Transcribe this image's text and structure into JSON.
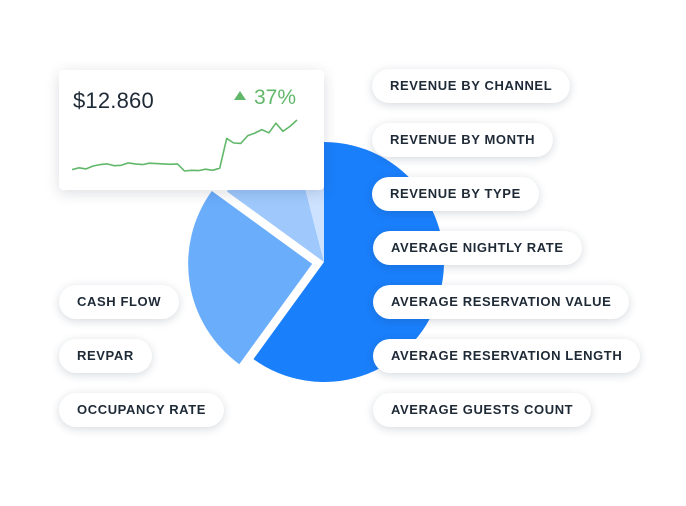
{
  "chart_data": {
    "type": "pie",
    "values": [
      60,
      25,
      11,
      4
    ],
    "colors": [
      "#1a7ffb",
      "#6aadfb",
      "#9fc9fd",
      "#cde2fe"
    ],
    "exploded": [
      false,
      true,
      false,
      false
    ]
  },
  "sparkline": {
    "amount": "$12.860",
    "change": "37%",
    "color": "#62b86a",
    "values": [
      2,
      2.5,
      2.2,
      3,
      3.4,
      3.6,
      3.1,
      3.2,
      3.9,
      3.6,
      3.4,
      3.8,
      3.7,
      3.6,
      3.5,
      3.6,
      1.6,
      1.8,
      1.7,
      2.1,
      1.8,
      2.4,
      10.8,
      9.5,
      9.4,
      11.6,
      12.3,
      13.3,
      12.4,
      15.1,
      12.8,
      14.2,
      16
    ]
  },
  "tags": {
    "left": [
      "CASH FLOW",
      "REVPAR",
      "OCCUPANCY RATE"
    ],
    "right": [
      "REVENUE BY CHANNEL",
      "REVENUE BY MONTH",
      "REVENUE BY TYPE",
      "AVERAGE NIGHTLY RATE",
      "AVERAGE RESERVATION VALUE",
      "AVERAGE RESERVATION LENGTH",
      "AVERAGE GUESTS COUNT"
    ]
  }
}
